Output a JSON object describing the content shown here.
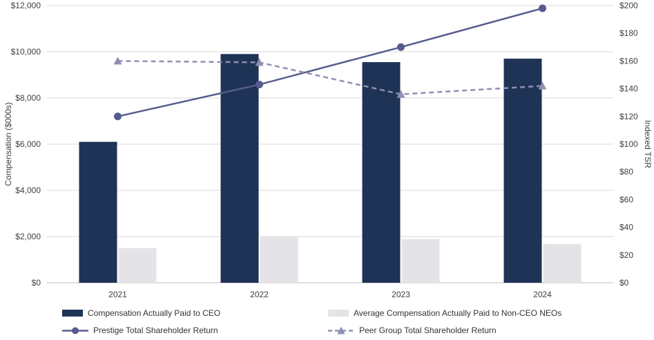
{
  "chart_data": {
    "type": "combo-bar-line",
    "categories": [
      "2021",
      "2022",
      "2023",
      "2024"
    ],
    "bar_series": [
      {
        "name": "Compensation Actually Paid to CEO",
        "color": "#1f3356",
        "axis": "left",
        "values": [
          6100,
          9900,
          9550,
          9700
        ]
      },
      {
        "name": "Average Compensation Actually Paid to Non-CEO NEOs",
        "color": "#e4e4e8",
        "axis": "left",
        "values": [
          1500,
          2020,
          1890,
          1680
        ]
      }
    ],
    "line_series": [
      {
        "name": "Prestige Total Shareholder Return",
        "color": "#565b8e",
        "style": "solid",
        "marker": "circle",
        "axis": "right",
        "values": [
          120,
          143,
          170,
          198
        ]
      },
      {
        "name": "Peer Group Total Shareholder Return",
        "color": "#8f8fb5",
        "style": "dashed",
        "marker": "triangle",
        "axis": "right",
        "values": [
          160,
          159,
          136,
          142
        ]
      }
    ],
    "left_axis": {
      "title": "Compensation ($000s)",
      "min": 0,
      "max": 12000,
      "step": 2000,
      "tick_labels": [
        "$0",
        "$2,000",
        "$4,000",
        "$6,000",
        "$8,000",
        "$10,000",
        "$12,000"
      ]
    },
    "right_axis": {
      "title": "Indexed TSR",
      "min": 0,
      "max": 200,
      "step": 20,
      "tick_labels": [
        "$0",
        "$20",
        "$40",
        "$60",
        "$80",
        "$100",
        "$120",
        "$140",
        "$160",
        "$180",
        "$200"
      ]
    },
    "grid": true,
    "gridline_color": "#d9d9d9",
    "axis_line_color": "#bfbfbf",
    "legend_position": "bottom"
  }
}
